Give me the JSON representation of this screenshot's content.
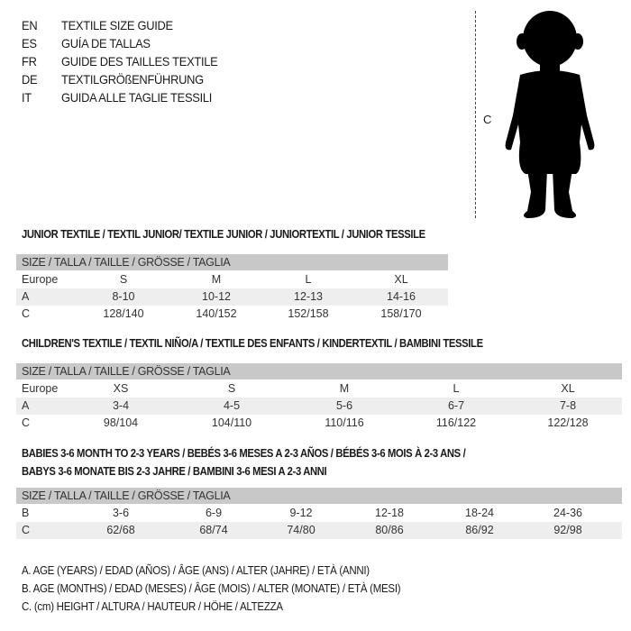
{
  "languages": [
    {
      "code": "EN",
      "title": "TEXTILE SIZE GUIDE"
    },
    {
      "code": "ES",
      "title": "GUÍA DE TALLAS"
    },
    {
      "code": "FR",
      "title": "GUIDE DES TAILLES TEXTILE"
    },
    {
      "code": "DE",
      "title": "TEXTILGRÖßENFÜHRUNG"
    },
    {
      "code": "IT",
      "title": "GUIDA ALLE TAGLIE TESSILI"
    }
  ],
  "figure": {
    "height_label": "C",
    "icon": "baby-silhouette-icon"
  },
  "junior": {
    "title": "JUNIOR TEXTILE / TEXTIL JUNIOR/ TEXTILE JUNIOR / JUNIORTEXTIL / JUNIOR TESSILE",
    "header": "SIZE / TALLA / TAILLE / GRÖSSE / TAGLIA",
    "rows": [
      {
        "label": "Europe",
        "values": [
          "S",
          "M",
          "L",
          "XL"
        ]
      },
      {
        "label": "A",
        "values": [
          "8-10",
          "10-12",
          "12-13",
          "14-16"
        ]
      },
      {
        "label": "C",
        "values": [
          "128/140",
          "140/152",
          "152/158",
          "158/170"
        ]
      }
    ]
  },
  "children": {
    "title": "CHILDREN'S TEXTILE / TEXTIL NIÑO/A / TEXTILE DES ENFANTS / KINDERTEXTIL / BAMBINI TESSILE",
    "header": "SIZE / TALLA / TAILLE / GRÖSSE / TAGLIA",
    "rows": [
      {
        "label": "Europe",
        "values": [
          "XS",
          "S",
          "M",
          "L",
          "XL"
        ]
      },
      {
        "label": "A",
        "values": [
          "3-4",
          "4-5",
          "5-6",
          "6-7",
          "7-8"
        ]
      },
      {
        "label": "C",
        "values": [
          "98/104",
          "104/110",
          "110/116",
          "116/122",
          "122/128"
        ]
      }
    ]
  },
  "babies": {
    "title_line1": "BABIES 3-6 MONTH TO 2-3 YEARS / BEBÉS 3-6 MESES A 2-3 AÑOS / BÉBÉS 3-6 MOIS À 2-3 ANS /",
    "title_line2": "BABYS 3-6 MONATE BIS 2-3 JAHRE / BAMBINI 3-6 MESI A 2-3 ANNI",
    "header": "SIZE / TALLA / TAILLE / GRÖSSE / TAGLIA",
    "rows": [
      {
        "label": "B",
        "values": [
          "3-6",
          "6-9",
          "9-12",
          "12-18",
          "18-24",
          "24-36"
        ]
      },
      {
        "label": "C",
        "values": [
          "62/68",
          "68/74",
          "74/80",
          "80/86",
          "86/92",
          "92/98"
        ]
      }
    ]
  },
  "legend": [
    "A. AGE (YEARS) / EDAD (AÑOS) / ÂGE (ANS) / ALTER (JAHRE) / ETÀ (ANNI)",
    "B. AGE (MONTHS) / EDAD (MESES) / ÂGE (MOIS) / ALTER (MONATE) / ETÀ (MESI)",
    "C. (cm) HEIGHT / ALTURA / HAUTEUR / HÖHE / ALTEZZA"
  ]
}
